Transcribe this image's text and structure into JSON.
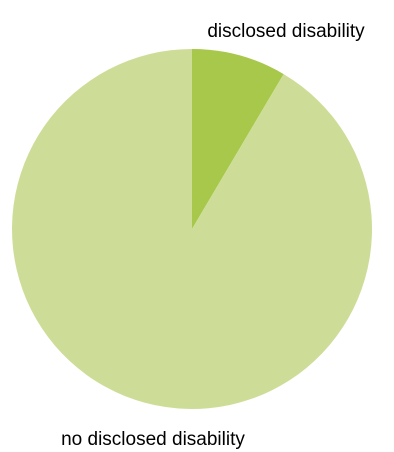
{
  "chart_data": {
    "type": "pie",
    "categories": [
      "disclosed disability",
      "no disclosed disability"
    ],
    "values": [
      8.5,
      91.5
    ],
    "unit": "%",
    "start_angle_deg": 0,
    "direction": "clockwise",
    "colors": [
      "#a7c84a",
      "#cddd98"
    ],
    "title": "",
    "legend": "none",
    "labels_placement": "outside"
  }
}
